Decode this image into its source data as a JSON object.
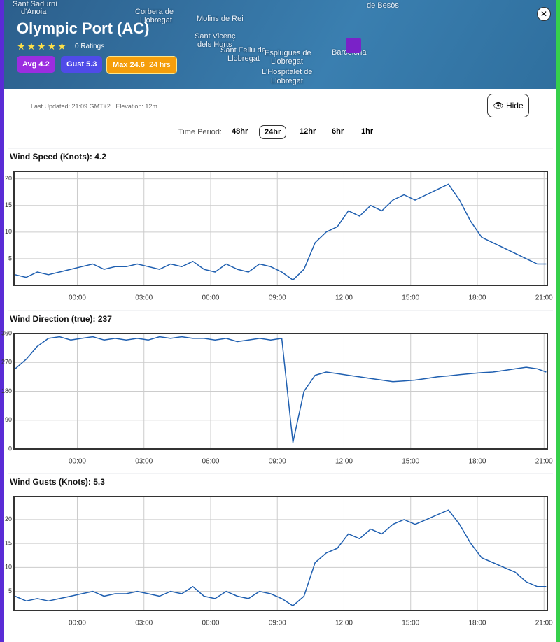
{
  "header": {
    "title": "Olympic Port (AC)",
    "ratings": "0 Ratings",
    "badges": {
      "avg": "Avg 4.2",
      "gust": "Gust 5.3",
      "max": "Max 24.6",
      "max_period": "24 hrs"
    },
    "map_labels": [
      "Sant Sadurní",
      "d'Anoia",
      "Corbera de",
      "Llobregat",
      "Molins de Rei",
      "Sant Vicenç",
      "dels Horts",
      "Sant Feliu de",
      "Llobregat",
      "Esplugues de",
      "Llobregat",
      "L'Hospitalet de",
      "Llobregat",
      "Barcelona",
      "de Besòs"
    ],
    "hide": "Hide"
  },
  "info": {
    "last_updated": "Last Updated: 21:09 GMT+2",
    "elevation": "Elevation: 12m"
  },
  "time_period": {
    "label": "Time Period:",
    "options": [
      "48hr",
      "24hr",
      "12hr",
      "6hr",
      "1hr"
    ],
    "selected_index": 1
  },
  "chart_data": [
    {
      "type": "line",
      "title": "Wind Speed (Knots): 4.2",
      "color": "#1f5fb0",
      "grid": true,
      "x": [
        -2.8,
        -2.3,
        -1.8,
        -1.3,
        -0.8,
        -0.3,
        0.2,
        0.7,
        1.2,
        1.7,
        2.2,
        2.7,
        3.2,
        3.7,
        4.2,
        4.7,
        5.2,
        5.7,
        6.2,
        6.7,
        7.2,
        7.7,
        8.2,
        8.7,
        9.2,
        9.7,
        10.2,
        10.7,
        11.2,
        11.7,
        12.2,
        12.7,
        13.2,
        13.7,
        14.2,
        14.7,
        15.2,
        15.7,
        16.2,
        16.7,
        17.2,
        17.7,
        18.2,
        18.7,
        19.2,
        19.7,
        20.2,
        20.7,
        21.1
      ],
      "values": [
        2,
        1.5,
        2.5,
        2,
        2.5,
        3,
        3.5,
        4,
        3,
        3.5,
        3.5,
        4,
        3.5,
        3,
        4,
        3.5,
        4.5,
        3,
        2.5,
        4,
        3,
        2.5,
        4,
        3.5,
        2.5,
        1,
        3,
        8,
        10,
        11,
        14,
        13,
        15,
        14,
        16,
        17,
        16,
        17,
        18,
        19,
        16,
        12,
        9,
        8,
        7,
        6,
        5,
        4,
        4
      ],
      "xlim": [
        -2.85,
        21.15
      ],
      "ylim": [
        0,
        21.4
      ],
      "yticks": [
        5,
        10,
        15,
        20
      ],
      "xticks": [
        {
          "value": 0,
          "label": "00:00"
        },
        {
          "value": 3,
          "label": "03:00"
        },
        {
          "value": 6,
          "label": "06:00"
        },
        {
          "value": 9,
          "label": "09:00"
        },
        {
          "value": 12,
          "label": "12:00"
        },
        {
          "value": 15,
          "label": "15:00"
        },
        {
          "value": 18,
          "label": "18:00"
        },
        {
          "value": 21,
          "label": "21:00"
        }
      ]
    },
    {
      "type": "line",
      "title": "Wind Direction (true): 237",
      "color": "#1f5fb0",
      "grid": true,
      "x": [
        -2.8,
        -2.3,
        -1.8,
        -1.3,
        -0.8,
        -0.3,
        0.2,
        0.7,
        1.2,
        1.7,
        2.2,
        2.7,
        3.2,
        3.7,
        4.2,
        4.7,
        5.2,
        5.7,
        6.2,
        6.7,
        7.2,
        7.7,
        8.2,
        8.7,
        9.2,
        9.7,
        10.2,
        10.7,
        11.2,
        11.7,
        12.2,
        12.7,
        13.2,
        13.7,
        14.2,
        14.7,
        15.2,
        15.7,
        16.2,
        16.7,
        17.2,
        17.7,
        18.2,
        18.7,
        19.2,
        19.7,
        20.2,
        20.7,
        21.1
      ],
      "values": [
        250,
        280,
        320,
        345,
        350,
        340,
        345,
        350,
        340,
        345,
        340,
        345,
        340,
        350,
        345,
        350,
        345,
        345,
        340,
        345,
        335,
        340,
        345,
        340,
        345,
        20,
        180,
        230,
        240,
        235,
        230,
        225,
        220,
        215,
        210,
        212,
        215,
        220,
        225,
        228,
        232,
        235,
        238,
        240,
        245,
        250,
        255,
        250,
        240
      ],
      "xlim": [
        -2.85,
        21.15
      ],
      "ylim": [
        0,
        360
      ],
      "yticks": [
        0,
        90,
        180,
        270,
        360
      ],
      "xticks": [
        {
          "value": 0,
          "label": "00:00"
        },
        {
          "value": 3,
          "label": "03:00"
        },
        {
          "value": 6,
          "label": "06:00"
        },
        {
          "value": 9,
          "label": "09:00"
        },
        {
          "value": 12,
          "label": "12:00"
        },
        {
          "value": 15,
          "label": "15:00"
        },
        {
          "value": 18,
          "label": "18:00"
        },
        {
          "value": 21,
          "label": "21:00"
        }
      ]
    },
    {
      "type": "line",
      "title": "Wind Gusts (Knots): 5.3",
      "color": "#1f5fb0",
      "grid": true,
      "x": [
        -2.8,
        -2.3,
        -1.8,
        -1.3,
        -0.8,
        -0.3,
        0.2,
        0.7,
        1.2,
        1.7,
        2.2,
        2.7,
        3.2,
        3.7,
        4.2,
        4.7,
        5.2,
        5.7,
        6.2,
        6.7,
        7.2,
        7.7,
        8.2,
        8.7,
        9.2,
        9.7,
        10.2,
        10.7,
        11.2,
        11.7,
        12.2,
        12.7,
        13.2,
        13.7,
        14.2,
        14.7,
        15.2,
        15.7,
        16.2,
        16.7,
        17.2,
        17.7,
        18.2,
        18.7,
        19.2,
        19.7,
        20.2,
        20.7,
        21.1
      ],
      "values": [
        4,
        3,
        3.5,
        3,
        3.5,
        4,
        4.5,
        5,
        4,
        4.5,
        4.5,
        5,
        4.5,
        4,
        5,
        4.5,
        6,
        4,
        3.5,
        5,
        4,
        3.5,
        5,
        4.5,
        3.5,
        2,
        4,
        11,
        13,
        14,
        17,
        16,
        18,
        17,
        19,
        20,
        19,
        20,
        21,
        22,
        19,
        15,
        12,
        11,
        10,
        9,
        7,
        6,
        6
      ],
      "xlim": [
        -2.85,
        21.15
      ],
      "ylim": [
        1,
        24.8
      ],
      "yticks": [
        5,
        10,
        15,
        20
      ],
      "xticks": [
        {
          "value": 0,
          "label": "00:00"
        },
        {
          "value": 3,
          "label": "03:00"
        },
        {
          "value": 6,
          "label": "06:00"
        },
        {
          "value": 9,
          "label": "09:00"
        },
        {
          "value": 12,
          "label": "12:00"
        },
        {
          "value": 15,
          "label": "15:00"
        },
        {
          "value": 18,
          "label": "18:00"
        },
        {
          "value": 21,
          "label": "21:00"
        }
      ]
    }
  ]
}
